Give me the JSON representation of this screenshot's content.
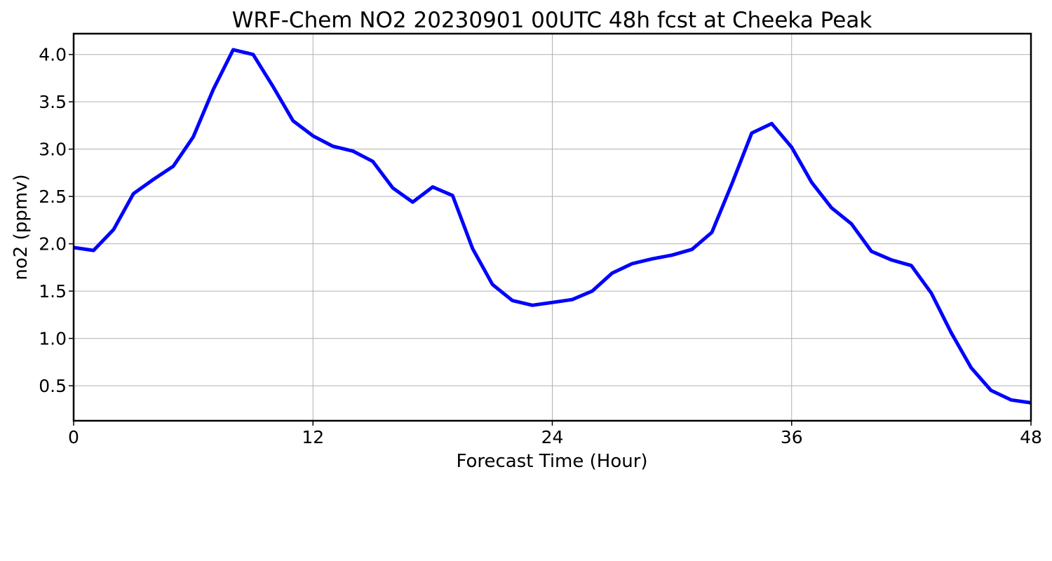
{
  "chart_data": {
    "type": "line",
    "title": "WRF-Chem NO2  20230901 00UTC 48h fcst at Cheeka Peak",
    "xlabel": "Forecast Time (Hour)",
    "ylabel": "no2  (ppmv)",
    "xlim": [
      0,
      48
    ],
    "ylim": [
      0.13,
      4.22
    ],
    "xticks": [
      0,
      12,
      24,
      36,
      48
    ],
    "yticks": [
      0.5,
      1.0,
      1.5,
      2.0,
      2.5,
      3.0,
      3.5,
      4.0
    ],
    "ytick_labels": [
      "0.5",
      "1.0",
      "1.5",
      "2.0",
      "2.5",
      "3.0",
      "3.5",
      "4.0"
    ],
    "grid": true,
    "series": [
      {
        "color": "#0000ff",
        "x": [
          0,
          1,
          2,
          3,
          4,
          5,
          6,
          7,
          8,
          9,
          10,
          11,
          12,
          13,
          14,
          15,
          16,
          17,
          18,
          19,
          20,
          21,
          22,
          23,
          24,
          25,
          26,
          27,
          28,
          29,
          30,
          31,
          32,
          33,
          34,
          35,
          36,
          37,
          38,
          39,
          40,
          41,
          42,
          43,
          44,
          45,
          46,
          47,
          48
        ],
        "values": [
          1.96,
          1.93,
          2.15,
          2.53,
          2.68,
          2.82,
          3.13,
          3.63,
          4.05,
          4.0,
          3.66,
          3.3,
          3.14,
          3.03,
          2.98,
          2.87,
          2.59,
          2.44,
          2.6,
          2.51,
          1.95,
          1.57,
          1.4,
          1.35,
          1.38,
          1.41,
          1.5,
          1.69,
          1.79,
          1.84,
          1.88,
          1.94,
          2.12,
          2.63,
          3.17,
          3.27,
          3.02,
          2.65,
          2.38,
          2.21,
          1.92,
          1.83,
          1.77,
          1.48,
          1.06,
          0.69,
          0.45,
          0.35,
          0.32
        ]
      }
    ]
  }
}
